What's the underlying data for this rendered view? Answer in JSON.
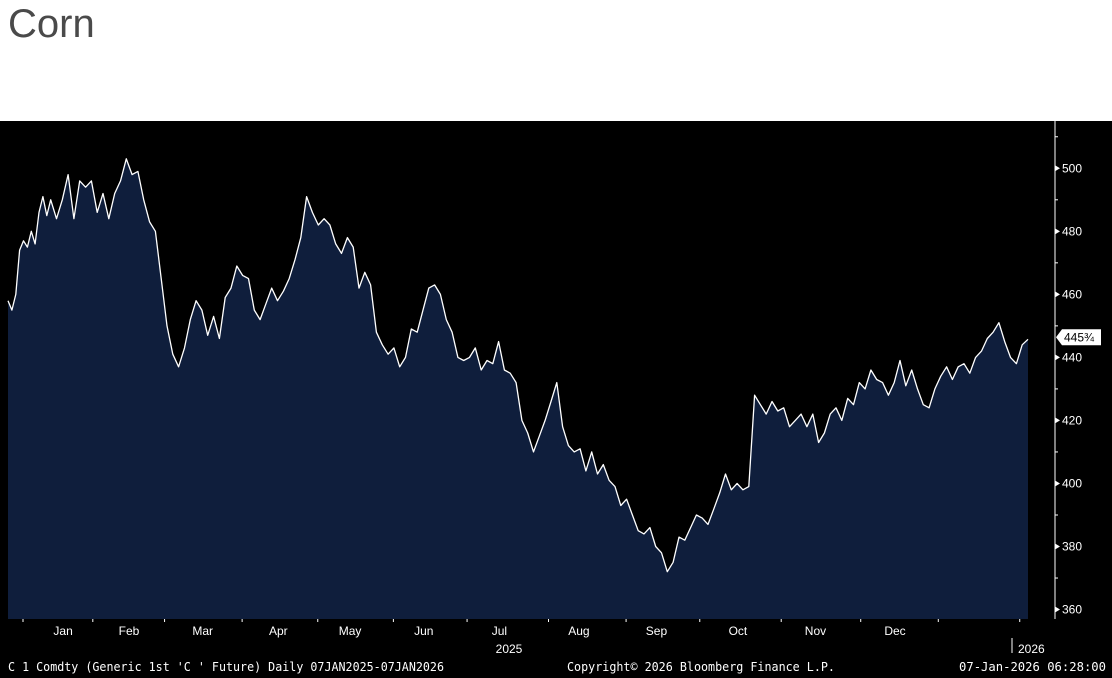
{
  "page": {
    "title": "Corn"
  },
  "footer": {
    "left": "C 1 Comdty (Generic 1st 'C ' Future) Daily 07JAN2025-07JAN2026",
    "center": "Copyright© 2026 Bloomberg Finance L.P.",
    "right": "07-Jan-2026 06:28:00"
  },
  "colors": {
    "background": "#000000",
    "area_fill": "#0f1e3c",
    "line": "#ffffff",
    "axis_text": "#ffffff",
    "title_text": "#4a4a4a"
  },
  "chart_data": {
    "type": "area",
    "title": "",
    "xlabel": "",
    "ylabel": "",
    "ylim": [
      357,
      515
    ],
    "y_ticks": [
      360,
      380,
      400,
      420,
      440,
      460,
      480,
      500
    ],
    "x_ticks": [
      "Jan",
      "Feb",
      "Mar",
      "Apr",
      "May",
      "Jun",
      "Jul",
      "Aug",
      "Sep",
      "Oct",
      "Nov",
      "Dec"
    ],
    "year_labels": [
      "2025",
      "2026"
    ],
    "last_value_label": "445¾",
    "last_value": 445.75,
    "grid": false,
    "series": [
      {
        "values": [
          [
            0,
            458
          ],
          [
            2,
            455
          ],
          [
            4,
            460
          ],
          [
            6,
            474
          ],
          [
            8,
            477
          ],
          [
            10,
            475
          ],
          [
            12,
            480
          ],
          [
            14,
            476
          ],
          [
            16,
            486
          ],
          [
            18,
            491
          ],
          [
            20,
            485
          ],
          [
            22,
            490
          ],
          [
            25,
            484
          ],
          [
            28,
            490
          ],
          [
            31,
            498
          ],
          [
            34,
            484
          ],
          [
            37,
            496
          ],
          [
            40,
            494
          ],
          [
            43,
            496
          ],
          [
            46,
            486
          ],
          [
            49,
            492
          ],
          [
            52,
            484
          ],
          [
            55,
            492
          ],
          [
            58,
            496
          ],
          [
            61,
            503
          ],
          [
            64,
            498
          ],
          [
            67,
            499
          ],
          [
            70,
            490
          ],
          [
            73,
            483
          ],
          [
            76,
            480
          ],
          [
            79,
            465
          ],
          [
            82,
            450
          ],
          [
            85,
            441
          ],
          [
            88,
            437
          ],
          [
            91,
            443
          ],
          [
            94,
            452
          ],
          [
            97,
            458
          ],
          [
            100,
            455
          ],
          [
            103,
            447
          ],
          [
            106,
            453
          ],
          [
            109,
            446
          ],
          [
            112,
            459
          ],
          [
            115,
            462
          ],
          [
            118,
            469
          ],
          [
            121,
            466
          ],
          [
            124,
            465
          ],
          [
            127,
            455
          ],
          [
            130,
            452
          ],
          [
            133,
            457
          ],
          [
            136,
            462
          ],
          [
            139,
            458
          ],
          [
            142,
            461
          ],
          [
            145,
            465
          ],
          [
            148,
            471
          ],
          [
            151,
            478
          ],
          [
            154,
            491
          ],
          [
            157,
            486
          ],
          [
            160,
            482
          ],
          [
            163,
            484
          ],
          [
            166,
            482
          ],
          [
            169,
            476
          ],
          [
            172,
            473
          ],
          [
            175,
            478
          ],
          [
            178,
            475
          ],
          [
            181,
            462
          ],
          [
            184,
            467
          ],
          [
            187,
            463
          ],
          [
            190,
            448
          ],
          [
            193,
            444
          ],
          [
            196,
            441
          ],
          [
            199,
            443
          ],
          [
            202,
            437
          ],
          [
            205,
            440
          ],
          [
            208,
            449
          ],
          [
            211,
            448
          ],
          [
            214,
            455
          ],
          [
            217,
            462
          ],
          [
            220,
            463
          ],
          [
            223,
            460
          ],
          [
            226,
            452
          ],
          [
            229,
            448
          ],
          [
            232,
            440
          ],
          [
            235,
            439
          ],
          [
            238,
            440
          ],
          [
            241,
            443
          ],
          [
            244,
            436
          ],
          [
            247,
            439
          ],
          [
            250,
            438
          ],
          [
            253,
            445
          ],
          [
            256,
            436
          ],
          [
            259,
            435
          ],
          [
            262,
            432
          ],
          [
            265,
            420
          ],
          [
            268,
            416
          ],
          [
            271,
            410
          ],
          [
            274,
            415
          ],
          [
            277,
            420
          ],
          [
            280,
            426
          ],
          [
            283,
            432
          ],
          [
            286,
            418
          ],
          [
            289,
            412
          ],
          [
            292,
            410
          ],
          [
            295,
            411
          ],
          [
            298,
            404
          ],
          [
            301,
            410
          ],
          [
            304,
            403
          ],
          [
            307,
            406
          ],
          [
            310,
            401
          ],
          [
            313,
            399
          ],
          [
            316,
            393
          ],
          [
            319,
            395
          ],
          [
            322,
            390
          ],
          [
            325,
            385
          ],
          [
            328,
            384
          ],
          [
            331,
            386
          ],
          [
            334,
            380
          ],
          [
            337,
            378
          ],
          [
            340,
            372
          ],
          [
            343,
            375
          ],
          [
            346,
            383
          ],
          [
            349,
            382
          ],
          [
            352,
            386
          ],
          [
            355,
            390
          ],
          [
            358,
            389
          ],
          [
            361,
            387
          ],
          [
            364,
            392
          ],
          [
            367,
            397
          ],
          [
            370,
            403
          ],
          [
            373,
            398
          ],
          [
            376,
            400
          ],
          [
            379,
            398
          ],
          [
            382,
            399
          ],
          [
            385,
            428
          ],
          [
            388,
            425
          ],
          [
            391,
            422
          ],
          [
            394,
            426
          ],
          [
            397,
            423
          ],
          [
            400,
            424
          ],
          [
            403,
            418
          ],
          [
            406,
            420
          ],
          [
            409,
            422
          ],
          [
            412,
            418
          ],
          [
            415,
            422
          ],
          [
            418,
            413
          ],
          [
            421,
            416
          ],
          [
            424,
            422
          ],
          [
            427,
            424
          ],
          [
            430,
            420
          ],
          [
            433,
            427
          ],
          [
            436,
            425
          ],
          [
            439,
            432
          ],
          [
            442,
            430
          ],
          [
            445,
            436
          ],
          [
            448,
            433
          ],
          [
            451,
            432
          ],
          [
            454,
            428
          ],
          [
            457,
            432
          ],
          [
            460,
            439
          ],
          [
            463,
            431
          ],
          [
            466,
            436
          ],
          [
            469,
            430
          ],
          [
            472,
            425
          ],
          [
            475,
            424
          ],
          [
            478,
            430
          ],
          [
            481,
            434
          ],
          [
            484,
            437
          ],
          [
            487,
            433
          ],
          [
            490,
            437
          ],
          [
            493,
            438
          ],
          [
            496,
            435
          ],
          [
            499,
            440
          ],
          [
            502,
            442
          ],
          [
            505,
            446
          ],
          [
            508,
            448
          ],
          [
            511,
            451
          ],
          [
            514,
            445
          ],
          [
            517,
            440
          ],
          [
            520,
            438
          ],
          [
            523,
            444
          ],
          [
            526,
            445.75
          ]
        ]
      }
    ]
  }
}
